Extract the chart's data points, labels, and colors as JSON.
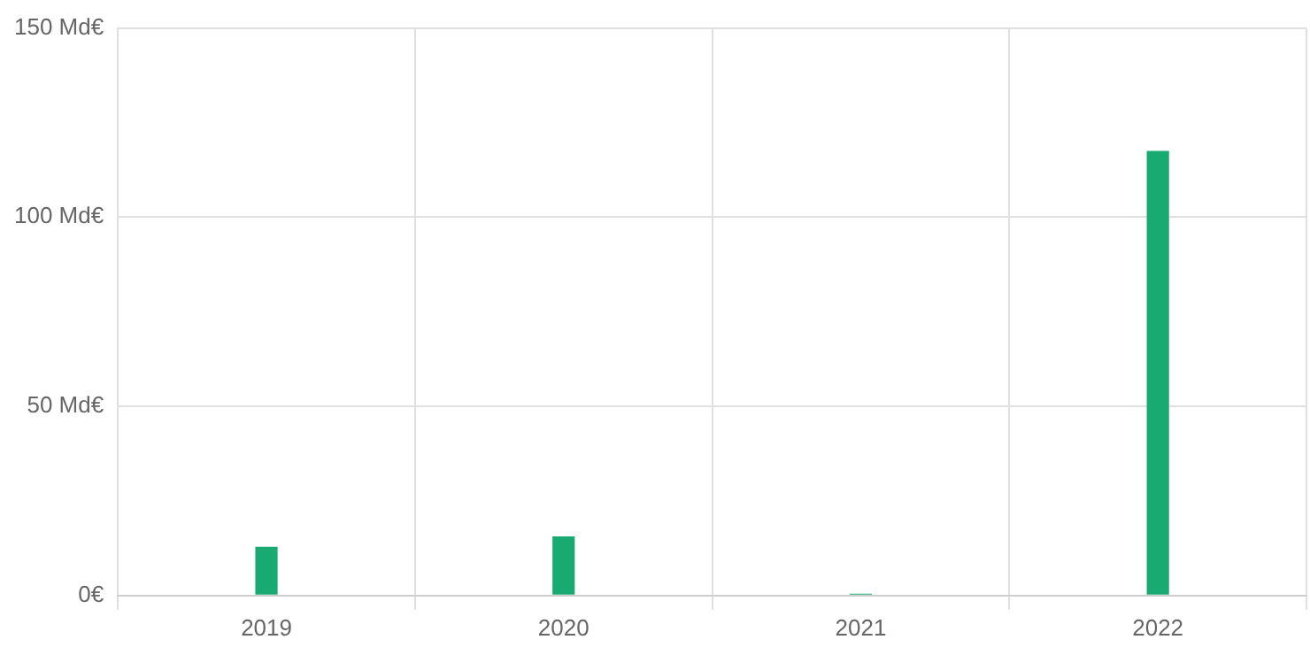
{
  "chart_data": {
    "type": "bar",
    "categories": [
      "2019",
      "2020",
      "2021",
      "2022"
    ],
    "values": [
      12.9,
      15.6,
      0.5,
      117.5
    ],
    "color": "#18aa70",
    "ylim": [
      0,
      150
    ],
    "yticks": [
      {
        "value": 0,
        "label": "0€"
      },
      {
        "value": 50,
        "label": "50 Md€"
      },
      {
        "value": 100,
        "label": "100 Md€"
      },
      {
        "value": 150,
        "label": "150 Md€"
      }
    ],
    "grid": true,
    "legend": false
  }
}
